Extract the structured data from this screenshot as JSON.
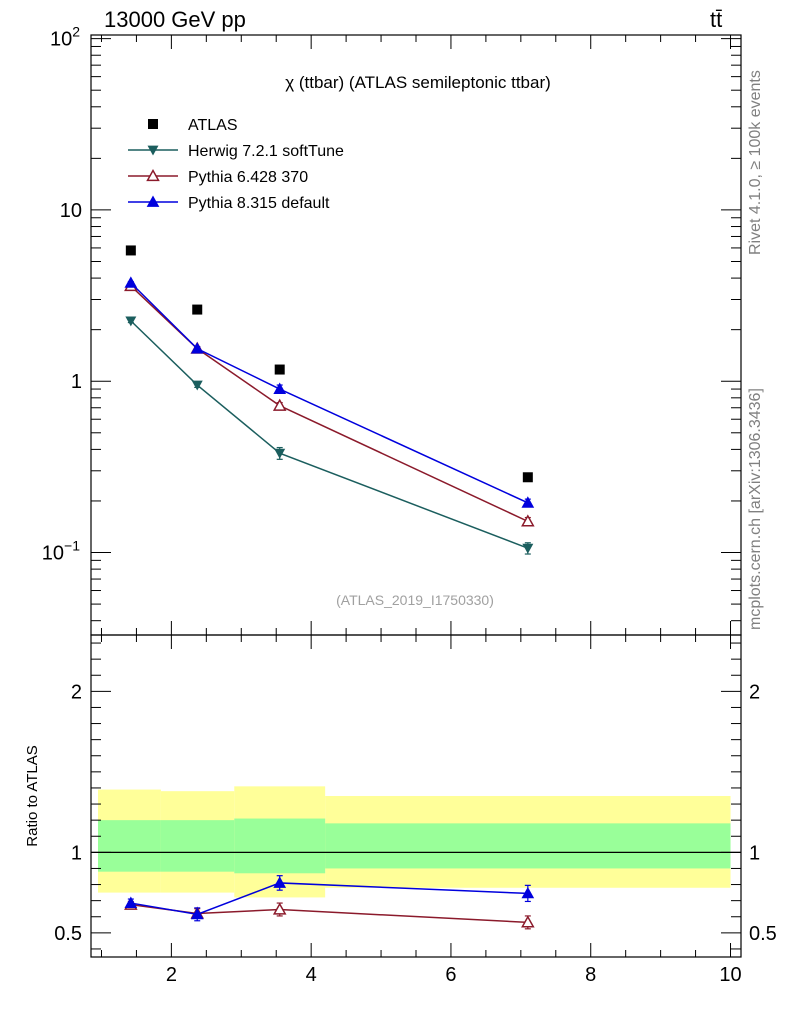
{
  "header": {
    "energy_label": "13000 GeV pp",
    "process_label": "tt̄"
  },
  "side_labels": {
    "rivet": "Rivet 4.1.0, ≥ 100k events",
    "source": "mcplots.cern.ch [arXiv:1306.3436]"
  },
  "chart_data": [
    {
      "type": "line",
      "panel": "main",
      "title": "χ (ttbar) (ATLAS semileptonic ttbar)",
      "analysis_tag": "(ATLAS_2019_I1750330)",
      "yscale": "log",
      "xlim": [
        0.85,
        10.15
      ],
      "ylim": [
        0.033,
        105
      ],
      "y_ticks": [
        {
          "value": 0.1,
          "base": "10",
          "exp": "−1"
        },
        {
          "value": 1,
          "base": "1",
          "exp": ""
        },
        {
          "value": 10,
          "base": "10",
          "exp": ""
        },
        {
          "value": 100,
          "base": "10",
          "exp": "2"
        }
      ],
      "legend_position": "top-left",
      "series": [
        {
          "name": "ATLAS",
          "color": "#000000",
          "marker": "square",
          "x": [
            1.42,
            2.37,
            3.55,
            7.1
          ],
          "y": [
            5.8,
            2.62,
            1.17,
            0.275
          ]
        },
        {
          "name": "Herwig 7.2.1 softTune",
          "color": "#1b5e5e",
          "marker": "triangle-down",
          "x": [
            1.42,
            2.37,
            3.55,
            7.1
          ],
          "y": [
            2.25,
            0.95,
            0.38,
            0.106
          ],
          "yerr": [
            0.05,
            0.03,
            0.03,
            0.008
          ]
        },
        {
          "name": "Pythia 6.428 370",
          "color": "#8b1a2b",
          "marker": "triangle-up-open",
          "x": [
            1.42,
            2.37,
            3.55,
            7.1
          ],
          "y": [
            3.6,
            1.55,
            0.72,
            0.152
          ],
          "yerr": [
            0.06,
            0.04,
            0.03,
            0.008
          ]
        },
        {
          "name": "Pythia 8.315 default",
          "color": "#0000dd",
          "marker": "triangle-up",
          "x": [
            1.42,
            2.37,
            3.55,
            7.1
          ],
          "y": [
            3.75,
            1.55,
            0.9,
            0.195
          ],
          "yerr": [
            0.06,
            0.04,
            0.05,
            0.01
          ]
        }
      ]
    },
    {
      "type": "line",
      "panel": "ratio",
      "ylabel": "Ratio to ATLAS",
      "xlim": [
        0.85,
        10.15
      ],
      "ylim": [
        0.35,
        2.35
      ],
      "x_ticks": [
        2,
        4,
        6,
        8,
        10
      ],
      "y_ticks": [
        0.5,
        1,
        2
      ],
      "reference_line": 1,
      "bands": [
        {
          "x0": 0.95,
          "x1": 1.85,
          "yellow": [
            0.75,
            1.39
          ],
          "green": [
            0.88,
            1.2
          ]
        },
        {
          "x0": 1.85,
          "x1": 2.9,
          "yellow": [
            0.75,
            1.38
          ],
          "green": [
            0.88,
            1.2
          ]
        },
        {
          "x0": 2.9,
          "x1": 4.2,
          "yellow": [
            0.72,
            1.41
          ],
          "green": [
            0.87,
            1.21
          ]
        },
        {
          "x0": 4.2,
          "x1": 10.0,
          "yellow": [
            0.78,
            1.35
          ],
          "green": [
            0.9,
            1.18
          ]
        }
      ],
      "series": [
        {
          "name": "Pythia 6.428 370",
          "color": "#8b1a2b",
          "marker": "triangle-up-open",
          "x": [
            1.42,
            2.37,
            3.55,
            7.1
          ],
          "y": [
            0.675,
            0.62,
            0.645,
            0.565
          ],
          "yerr": [
            0.02,
            0.03,
            0.04,
            0.04
          ]
        },
        {
          "name": "Pythia 8.315 default",
          "color": "#0000dd",
          "marker": "triangle-up",
          "x": [
            1.42,
            2.37,
            3.55,
            7.1
          ],
          "y": [
            0.685,
            0.615,
            0.81,
            0.745
          ],
          "yerr": [
            0.025,
            0.04,
            0.045,
            0.05
          ]
        }
      ]
    }
  ]
}
